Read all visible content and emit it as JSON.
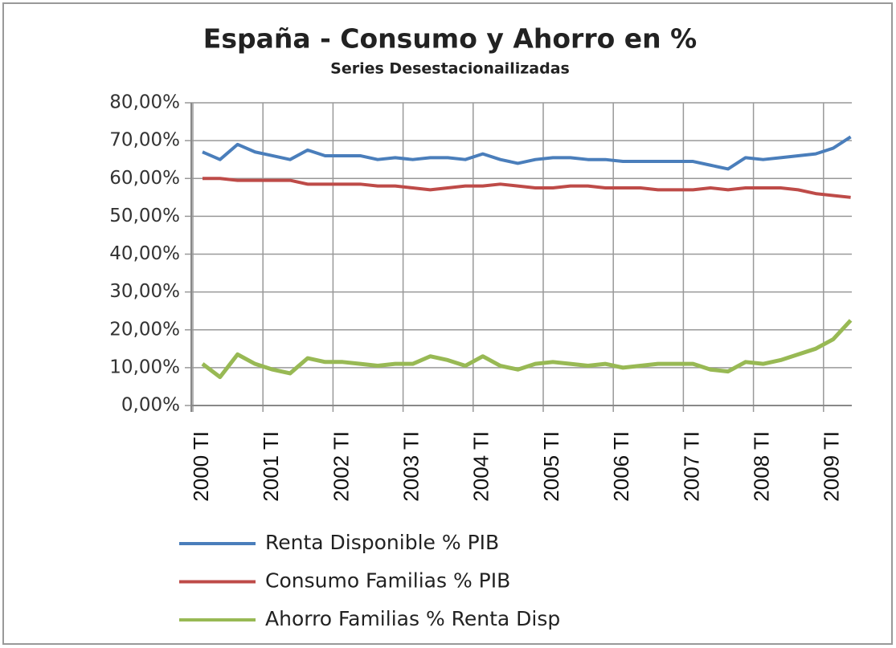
{
  "chart_data": {
    "type": "line",
    "title": "España - Consumo y Ahorro en %",
    "subtitle": "Series Desestacionailizadas",
    "categories": [
      "2000 TI",
      null,
      null,
      null,
      "2001 TI",
      null,
      null,
      null,
      "2002 TI",
      null,
      null,
      null,
      "2003 TI",
      null,
      null,
      null,
      "2004 TI",
      null,
      null,
      null,
      "2005 TI",
      null,
      null,
      null,
      "2006 TI",
      null,
      null,
      null,
      "2007 TI",
      null,
      null,
      null,
      "2008 TI",
      null,
      null,
      null,
      "2009 TI",
      null
    ],
    "series": [
      {
        "name": "Renta Disponible % PIB",
        "color": "#4a7ebb",
        "values": [
          67,
          65,
          69,
          67,
          66,
          65,
          67.5,
          66,
          66,
          66,
          65,
          65.5,
          65,
          65.5,
          65.5,
          65,
          66.5,
          65,
          64,
          65,
          65.5,
          65.5,
          65,
          65,
          64.5,
          64.5,
          64.5,
          64.5,
          64.5,
          63.5,
          62.5,
          65.5,
          65,
          65.5,
          66,
          66.5,
          68,
          71
        ]
      },
      {
        "name": "Consumo Familias  % PIB",
        "color": "#be4b48",
        "values": [
          60,
          60,
          59.5,
          59.5,
          59.5,
          59.5,
          58.5,
          58.5,
          58.5,
          58.5,
          58,
          58,
          57.5,
          57,
          57.5,
          58,
          58,
          58.5,
          58,
          57.5,
          57.5,
          58,
          58,
          57.5,
          57.5,
          57.5,
          57,
          57,
          57,
          57.5,
          57,
          57.5,
          57.5,
          57.5,
          57,
          56,
          55.5,
          55
        ]
      },
      {
        "name": "Ahorro Familias % Renta Disp",
        "color": "#98b954",
        "values": [
          11,
          7.5,
          13.5,
          11,
          9.5,
          8.5,
          12.5,
          11.5,
          11.5,
          11,
          10.5,
          11,
          11,
          13,
          12,
          10.5,
          13,
          10.5,
          9.5,
          11,
          11.5,
          11,
          10.5,
          11,
          10,
          10.5,
          11,
          11,
          11,
          9.5,
          9,
          11.5,
          11,
          12,
          13.5,
          15,
          17.5,
          22.5
        ]
      }
    ],
    "ylim": [
      0,
      80
    ],
    "yticks": [
      {
        "value": 0,
        "label": "0,00%"
      },
      {
        "value": 10,
        "label": "10,00%"
      },
      {
        "value": 20,
        "label": "20,00%"
      },
      {
        "value": 30,
        "label": "30,00%"
      },
      {
        "value": 40,
        "label": "40,00%"
      },
      {
        "value": 50,
        "label": "50,00%"
      },
      {
        "value": 60,
        "label": "60,00%"
      },
      {
        "value": 70,
        "label": "70,00%"
      },
      {
        "value": 80,
        "label": "80,00%"
      }
    ],
    "grid": true,
    "legend": "bottom"
  }
}
